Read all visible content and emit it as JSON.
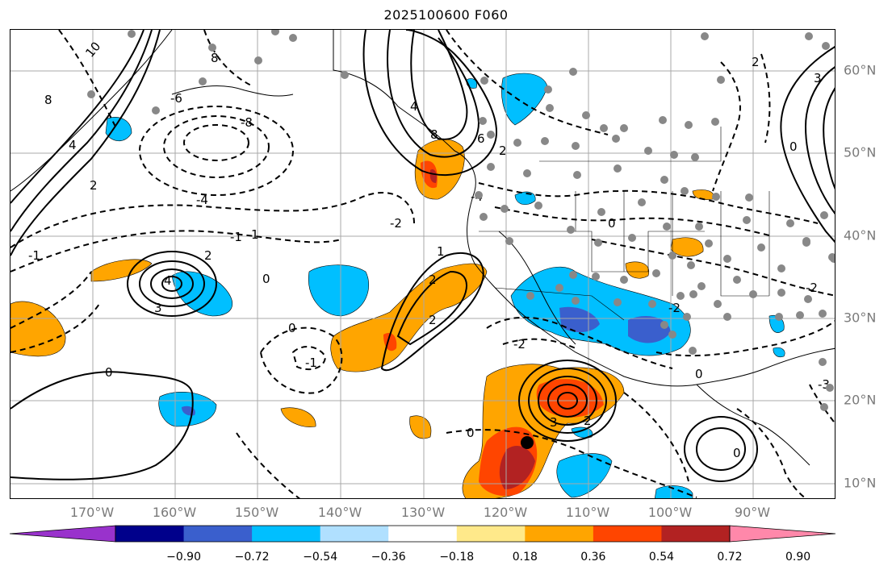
{
  "title": "2025100600 F060",
  "lon_labels": [
    "170°W",
    "160°W",
    "150°W",
    "140°W",
    "130°W",
    "120°W",
    "110°W",
    "100°W",
    "90°W"
  ],
  "lat_labels": [
    "60°N",
    "50°N",
    "40°N",
    "30°N",
    "20°N",
    "10°N"
  ],
  "colorbar": {
    "ticks": [
      "−0.90",
      "−0.72",
      "−0.54",
      "−0.36",
      "−0.18",
      "0.18",
      "0.36",
      "0.54",
      "0.72",
      "0.90"
    ],
    "colors": [
      "#9932cc",
      "#00008b",
      "#3a5fcd",
      "#00bfff",
      "#b0e0ff",
      "#ffffff",
      "#ffe98a",
      "#ffa500",
      "#ff4500",
      "#b22222",
      "#ff88aa"
    ]
  },
  "contour_labels": [
    "10",
    "8",
    "6",
    "4",
    "3",
    "2",
    "1",
    "0",
    "-1",
    "-2",
    "-3",
    "-4",
    "-6",
    "-8"
  ],
  "marker": "storm-center-dot"
}
